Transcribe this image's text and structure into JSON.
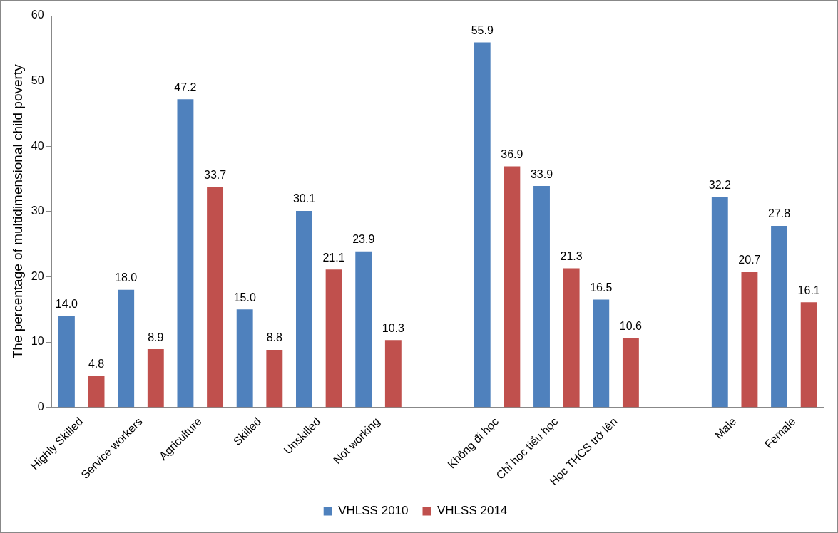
{
  "chart_data": {
    "type": "bar",
    "ylabel": "The percentage of multidimensional child poverty",
    "categories": [
      "Highly Skilled",
      "Service workers",
      "Agriculture",
      "Skilled",
      "Unskilled",
      "Not working",
      null,
      "Không đi học",
      "Chỉ học tiểu học",
      "Học THCS trở lên",
      null,
      "Male",
      "Female"
    ],
    "series": [
      {
        "name": "VHLSS 2010",
        "color": "#4f81bd",
        "values": [
          14.0,
          18.0,
          47.2,
          15.0,
          30.1,
          23.9,
          null,
          55.9,
          33.9,
          16.5,
          null,
          32.2,
          27.8
        ],
        "value_labels": [
          "14.0",
          "18.0",
          "47.2",
          "15.0",
          "30.1",
          "23.9",
          null,
          "55.9",
          "33.9",
          "16.5",
          null,
          "32.2",
          "27.8"
        ]
      },
      {
        "name": "VHLSS 2014",
        "color": "#c0504d",
        "values": [
          4.8,
          8.9,
          33.7,
          8.8,
          21.1,
          10.3,
          null,
          36.9,
          21.3,
          10.6,
          null,
          20.7,
          16.1
        ],
        "value_labels": [
          "4.8",
          "8.9",
          "33.7",
          "8.8",
          "21.1",
          "10.3",
          null,
          "36.9",
          "21.3",
          "10.6",
          null,
          "20.7",
          "16.1"
        ]
      }
    ],
    "ylim": [
      0,
      60
    ],
    "yticks": [
      0,
      10,
      20,
      30,
      40,
      50,
      60
    ],
    "grid": false,
    "legend": "bottom"
  }
}
